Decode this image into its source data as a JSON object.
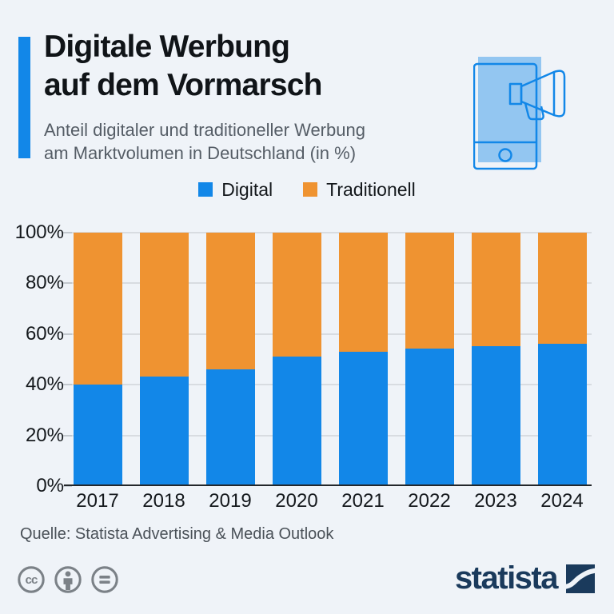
{
  "header": {
    "title": "Digitale Werbung\nauf dem Vormarsch",
    "subtitle": "Anteil digitaler und traditioneller Werbung\nam Marktvolumen in Deutschland (in %)",
    "icon": "smartphone-megaphone-icon"
  },
  "chart_data": {
    "type": "bar",
    "stacked": true,
    "title": "Digitale Werbung auf dem Vormarsch",
    "subtitle": "Anteil digitaler und traditioneller Werbung am Marktvolumen in Deutschland (in %)",
    "categories": [
      "2017",
      "2018",
      "2019",
      "2020",
      "2021",
      "2022",
      "2023",
      "2024"
    ],
    "series": [
      {
        "name": "Digital",
        "color": "#1287e8",
        "values": [
          40,
          43,
          46,
          51,
          53,
          54,
          55,
          56
        ]
      },
      {
        "name": "Traditionell",
        "color": "#ef9331",
        "values": [
          60,
          57,
          54,
          49,
          47,
          46,
          45,
          44
        ]
      }
    ],
    "xlabel": "",
    "ylabel": "",
    "ylim": [
      0,
      100
    ],
    "yticks": [
      "0%",
      "20%",
      "40%",
      "60%",
      "80%",
      "100%"
    ],
    "grid": true,
    "legend_position": "top"
  },
  "footer": {
    "source": "Quelle: Statista Advertising & Media Outlook",
    "license_icons": [
      "cc-icon",
      "cc-by-person-icon",
      "cc-nd-equals-icon"
    ],
    "brand_wordmark": "statista"
  },
  "colors": {
    "background": "#eff3f8",
    "digital_blue": "#1287e8",
    "traditionell_orange": "#ef9331",
    "title_text": "#101418",
    "subtitle_text": "#555d66",
    "axis_text": "#14181c",
    "gridline": "#d8dce1",
    "source_text": "#4a5158",
    "license_gray": "#7b8187",
    "brand_navy": "#1a3a5c"
  }
}
